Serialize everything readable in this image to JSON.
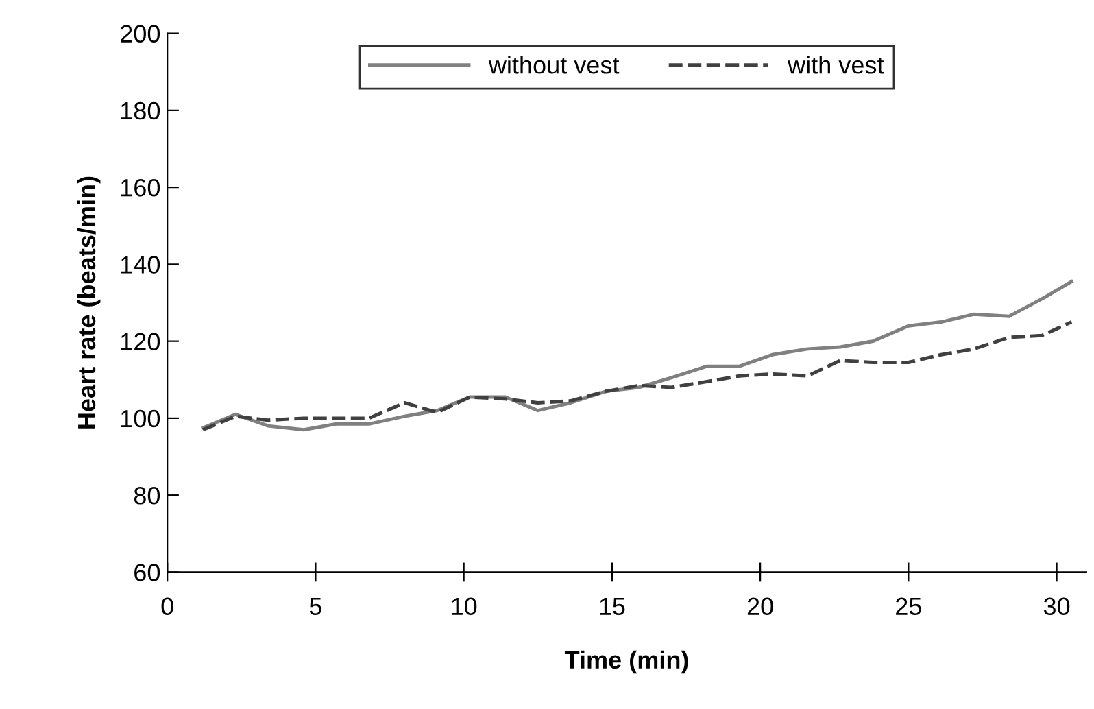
{
  "chart_data": {
    "type": "line",
    "xlabel": "Time (min)",
    "ylabel": "Heart rate (beats/min)",
    "x": [
      1.2,
      2.3,
      3.4,
      4.6,
      5.7,
      6.8,
      8,
      9.1,
      10.2,
      11.4,
      12.5,
      13.6,
      14.8,
      15.9,
      17,
      18.2,
      19.3,
      20.4,
      21.6,
      22.7,
      23.8,
      25,
      26.1,
      27.2,
      28.4,
      29.5,
      30.5
    ],
    "series": [
      {
        "name": "without vest",
        "color": "#808080",
        "line_style": "solid",
        "values": [
          97.5,
          101,
          98,
          97,
          98.5,
          98.5,
          100.5,
          102,
          105.5,
          105.5,
          102,
          104,
          107,
          108,
          110.5,
          113.5,
          113.5,
          116.5,
          118,
          118.5,
          120,
          124,
          125,
          127,
          126.5,
          131,
          135.5
        ]
      },
      {
        "name": "with vest",
        "color": "#404040",
        "line_style": "dashed",
        "values": [
          97,
          100.5,
          99.5,
          100,
          100,
          100,
          104,
          101.5,
          105.5,
          105,
          104,
          104.5,
          107,
          108.5,
          108,
          109.5,
          111,
          111.5,
          111,
          115,
          114.5,
          114.5,
          116.5,
          118,
          121,
          121.5,
          125
        ]
      }
    ],
    "xlim": [
      0,
      31
    ],
    "ylim": [
      60,
      200
    ],
    "xticks": [
      0,
      5,
      10,
      15,
      20,
      25,
      30
    ],
    "yticks": [
      60,
      80,
      100,
      120,
      140,
      160,
      180,
      200
    ],
    "grid": false,
    "legend": "top",
    "marker": "none"
  }
}
